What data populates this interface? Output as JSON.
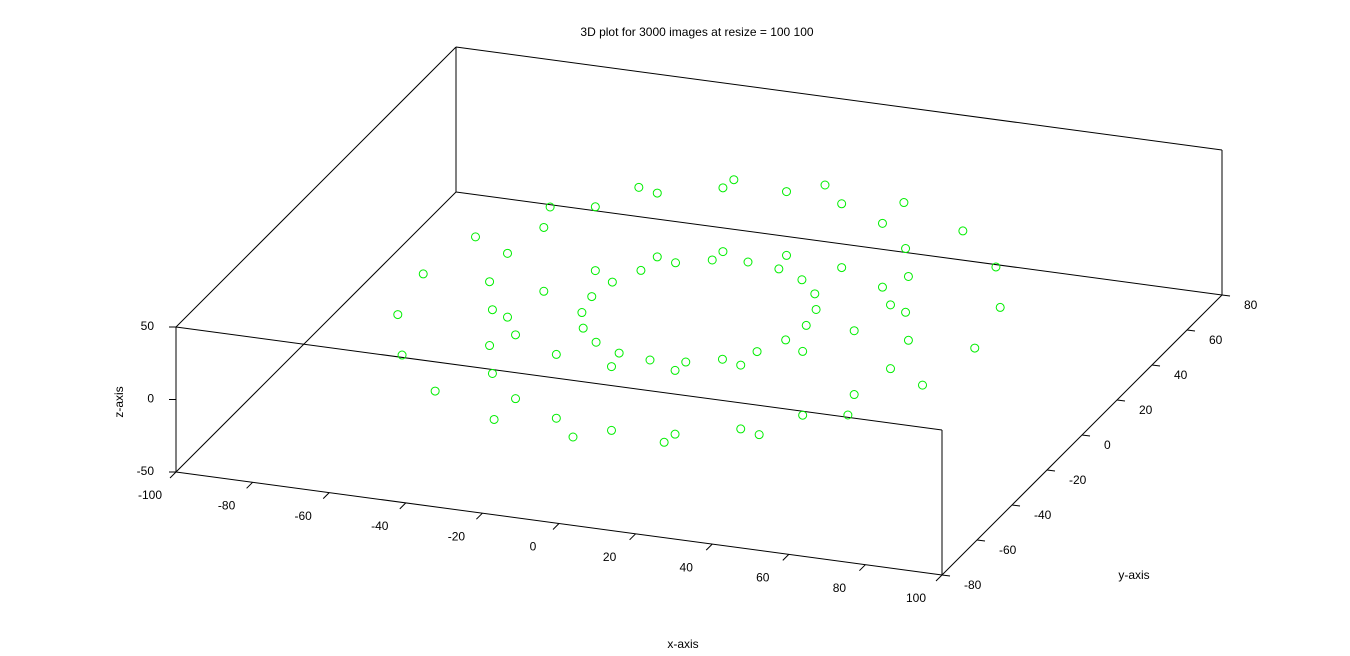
{
  "chart_data": {
    "type": "scatter3d",
    "title": "3D plot for 3000 images at resize = 100 100",
    "xlabel": "x-axis",
    "ylabel": "y-axis",
    "zlabel": "z-axis",
    "color": "#00ee00",
    "grid": false,
    "xlim": [
      -100,
      100
    ],
    "ylim": [
      -80,
      80
    ],
    "zlim": [
      -50,
      50
    ],
    "xticks": [
      -100,
      -80,
      -60,
      -40,
      -20,
      0,
      20,
      40,
      60,
      80,
      100
    ],
    "yticks": [
      -80,
      -60,
      -40,
      -20,
      0,
      20,
      40,
      60,
      80
    ],
    "zticks": [
      -50,
      0,
      50
    ],
    "x": [
      28,
      26.6,
      22.7,
      16.5,
      8.7,
      0,
      -8.7,
      -16.5,
      -22.7,
      -26.6,
      -28,
      -26.6,
      -22.7,
      -16.5,
      -8.7,
      0,
      8.7,
      16.5,
      22.7,
      26.6,
      50,
      47.6,
      40.5,
      29.4,
      15.5,
      0,
      -15.5,
      -29.4,
      -40.5,
      -47.6,
      -50,
      -47.6,
      -40.5,
      -29.4,
      -15.5,
      0,
      15.5,
      29.4,
      40.5,
      47.6,
      50,
      47.6,
      40.5,
      29.4,
      15.5,
      0,
      -15.5,
      -29.4,
      -40.5,
      -47.6,
      -50,
      -47.6,
      -40.5,
      -29.4,
      -15.5,
      0,
      15.5,
      29.4,
      40.5,
      47.6,
      72,
      68.5,
      58.2,
      42.3,
      22.2,
      0,
      -22.2,
      -42.3,
      -58.2,
      -68.5,
      -72,
      -68.5,
      -58.2,
      -42.3,
      -22.2,
      0,
      22.2,
      42.3,
      58.2,
      68.5
    ],
    "y": [
      0,
      8.7,
      16.5,
      22.7,
      26.6,
      28,
      26.6,
      22.7,
      16.5,
      8.7,
      0,
      -8.7,
      -16.5,
      -22.7,
      -26.6,
      -28,
      -26.6,
      -22.7,
      -16.5,
      -8.7,
      0,
      15.5,
      29.4,
      40.5,
      47.6,
      50,
      47.6,
      40.5,
      29.4,
      15.5,
      0,
      -15.5,
      -29.4,
      -40.5,
      -47.6,
      -50,
      -47.6,
      -40.5,
      -29.4,
      -15.5,
      0,
      15.5,
      29.4,
      40.5,
      47.6,
      50,
      47.6,
      40.5,
      29.4,
      15.5,
      0,
      -15.5,
      -29.4,
      -40.5,
      -47.6,
      -50,
      -47.6,
      -40.5,
      -29.4,
      -15.5,
      0,
      22.2,
      42.3,
      58.2,
      68.5,
      72,
      68.5,
      58.2,
      42.3,
      22.2,
      0,
      -22.2,
      -42.3,
      -58.2,
      -68.5,
      -72,
      -68.5,
      -58.2,
      -42.3,
      -22.2
    ],
    "z": [
      0,
      0,
      0,
      0,
      0,
      0,
      0,
      0,
      0,
      0,
      0,
      0,
      0,
      0,
      0,
      0,
      0,
      0,
      0,
      0,
      22,
      22,
      22,
      22,
      22,
      22,
      22,
      22,
      22,
      22,
      22,
      22,
      22,
      22,
      22,
      22,
      22,
      22,
      22,
      22,
      -22,
      -22,
      -22,
      -22,
      -22,
      -22,
      -22,
      -22,
      -22,
      -22,
      -22,
      -22,
      -22,
      -22,
      -22,
      -22,
      -22,
      -22,
      -22,
      -22,
      0,
      0,
      0,
      0,
      0,
      0,
      0,
      0,
      0,
      0,
      0,
      0,
      0,
      0,
      0,
      0,
      0,
      0,
      0,
      0
    ]
  }
}
